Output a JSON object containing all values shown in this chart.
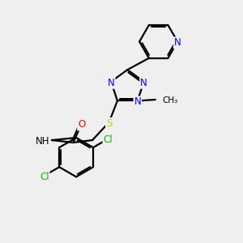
{
  "bg_color": "#efefef",
  "atom_colors": {
    "N": "#0000ff",
    "O": "#ff0000",
    "S": "#cccc00",
    "Cl": "#00bb00",
    "C": "#000000",
    "H": "#444444"
  },
  "bond_color": "#000000",
  "bond_width": 1.6,
  "font_size_atom": 8.5,
  "font_size_small": 7.5,
  "figsize": [
    3.0,
    3.0
  ],
  "dpi": 100,
  "xlim": [
    0,
    10
  ],
  "ylim": [
    0,
    10
  ]
}
